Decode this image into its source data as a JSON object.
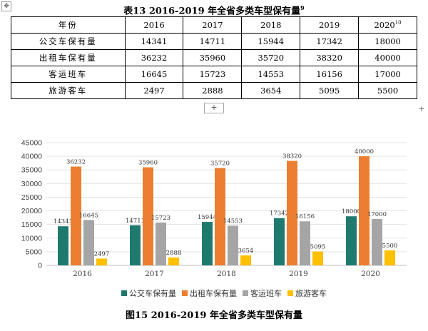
{
  "move_handle_icon": "move-arrows-icon",
  "table": {
    "title": "表13   2016-2019 年全省多类车型保有量",
    "title_sup": "9",
    "header": {
      "label": "年份",
      "years": [
        "2016",
        "2017",
        "2018",
        "2019",
        "2020"
      ],
      "last_year_sup": "10"
    },
    "rows": [
      {
        "label": "公交车保有量",
        "cells": [
          "14341",
          "14711",
          "15944",
          "17342",
          "18000"
        ]
      },
      {
        "label": "出租车保有量",
        "cells": [
          "36232",
          "35960",
          "35720",
          "38320",
          "40000"
        ]
      },
      {
        "label": "客运班车",
        "cells": [
          "16645",
          "15723",
          "14553",
          "16156",
          "17000"
        ]
      },
      {
        "label": "旅游客车",
        "cells": [
          "2497",
          "2888",
          "3654",
          "5095",
          "5500"
        ]
      }
    ]
  },
  "add_row_label": "+",
  "add_col_label": "+",
  "chart_data": {
    "type": "bar",
    "categories": [
      "2016",
      "2017",
      "2018",
      "2019",
      "2020"
    ],
    "series": [
      {
        "name": "公交车保有量",
        "color": "#1f7a6e",
        "values": [
          14341,
          14711,
          15944,
          17342,
          18000
        ]
      },
      {
        "name": "出租车保有量",
        "color": "#ed7d31",
        "values": [
          36232,
          35960,
          35720,
          38320,
          40000
        ]
      },
      {
        "name": "客运班车",
        "color": "#a5a5a5",
        "values": [
          16645,
          15723,
          14553,
          16156,
          17000
        ]
      },
      {
        "name": "旅游客车",
        "color": "#ffc000",
        "values": [
          2497,
          2888,
          3654,
          5095,
          5500
        ]
      }
    ],
    "ylim": [
      0,
      45000
    ],
    "yticks": [
      "0",
      "5000",
      "10000",
      "15000",
      "20000",
      "25000",
      "30000",
      "35000",
      "40000",
      "45000"
    ],
    "ytick_values": [
      0,
      5000,
      10000,
      15000,
      20000,
      25000,
      30000,
      35000,
      40000,
      45000
    ],
    "grid": true,
    "legend": "bottom",
    "data_labels": true
  },
  "figure_caption": "图15   2016-2019 年全省多类车型保有量"
}
